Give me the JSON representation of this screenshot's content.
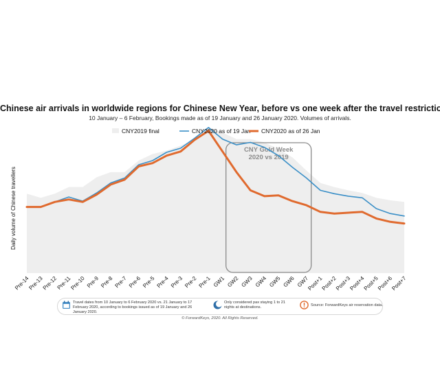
{
  "title": "Chinese air arrivals in worldwide regions for Chinese New Year, before vs one week after the travel restrictions",
  "subtitle": "10 January – 6 February, Bookings made as of 19 January and 26 January 2020. Volumes of arrivals.",
  "chart_data": {
    "type": "line",
    "ylabel": "Daily volume of Chinese travellers",
    "categories": [
      "Pre-14",
      "Pre-13",
      "Pre-12",
      "Pre-11",
      "Pre-10",
      "Pre-9",
      "Pre-8",
      "Pre-7",
      "Pre-6",
      "Pre-5",
      "Pre-4",
      "Pre-3",
      "Pre-2",
      "Pre-1",
      "GW1",
      "GW2",
      "GW3",
      "GW4",
      "GW5",
      "GW6",
      "GW7",
      "Post+1",
      "Post+2",
      "Post+3",
      "Post+4",
      "Post+5",
      "Post+6",
      "Post+7"
    ],
    "ylim": [
      0,
      180
    ],
    "series": [
      {
        "name": "CNY2019 final",
        "style": "area",
        "color": "#eeeeee",
        "values": [
          96,
          91,
          96,
          104,
          104,
          116,
          122,
          122,
          136,
          144,
          148,
          154,
          161,
          176,
          170,
          162,
          162,
          158,
          150,
          140,
          124,
          109,
          104,
          100,
          97,
          91,
          88,
          86
        ]
      },
      {
        "name": "CNY2020 as of 19 Jan",
        "style": "line",
        "color": "#3a8fc7",
        "values": [
          80,
          80,
          86,
          92,
          87,
          97,
          109,
          115,
          131,
          136,
          146,
          151,
          163,
          176,
          162,
          155,
          158,
          152,
          142,
          128,
          115,
          100,
          96,
          93,
          91,
          78,
          72,
          69
        ]
      },
      {
        "name": "CNY2020 as of 26 Jan",
        "style": "line",
        "color": "#e06a2e",
        "values": [
          80,
          80,
          86,
          89,
          86,
          95,
          107,
          113,
          129,
          133,
          142,
          147,
          161,
          172,
          147,
          122,
          100,
          93,
          94,
          87,
          82,
          74,
          72,
          73,
          74,
          66,
          62,
          60
        ]
      }
    ],
    "legend_position": "top-center",
    "highlight_box": {
      "label_line1": "CNY Gold Week",
      "label_line2": "2020 vs 2019",
      "from": "GW1",
      "to": "GW7"
    }
  },
  "footnotes": {
    "calendar": "Travel dates from 10 January to 6 February 2020 vs. 21 January to 17 February 2020, according to bookings issued as of 19 January and 26 January 2020.",
    "moon": "Only considered pax staying 1 to 21 nights at destinations.",
    "source": "Source: ForwardKeys air reservation data."
  },
  "copyright": "© ForwardKeys, 2020. All Rights Reserved.",
  "colors": {
    "calendar_icon": "#4a90c8",
    "moon_icon": "#2f6fa8",
    "alert_icon": "#e06a2e"
  },
  "icons": {
    "calendar": "calendar-icon",
    "moon": "moon-icon",
    "alert": "alert-icon"
  }
}
